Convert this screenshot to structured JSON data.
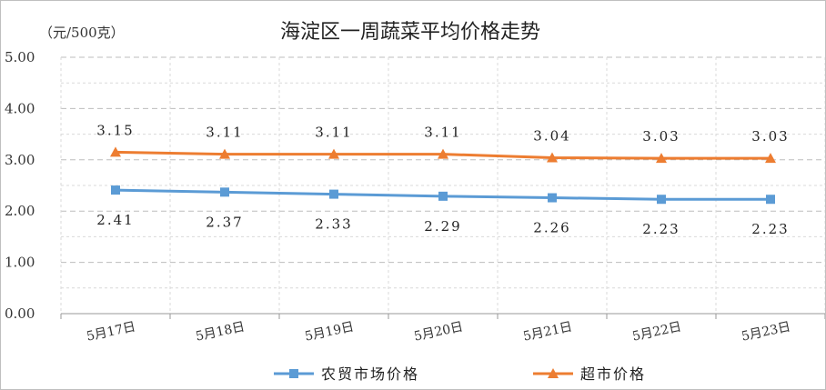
{
  "chart_data": {
    "type": "line",
    "title": "海淀区一周蔬菜平均价格走势",
    "unit_label": "（元/500克）",
    "categories": [
      "5月17日",
      "5月18日",
      "5月19日",
      "5月20日",
      "5月21日",
      "5月22日",
      "5月23日"
    ],
    "y_ticks": [
      "0.00",
      "1.00",
      "2.00",
      "3.00",
      "4.00",
      "5.00"
    ],
    "ylim": [
      0,
      5
    ],
    "grid": true,
    "legend_position": "bottom",
    "series": [
      {
        "name": "农贸市场价格",
        "color": "#5b9bd5",
        "marker": "square",
        "values": [
          2.41,
          2.37,
          2.33,
          2.29,
          2.26,
          2.23,
          2.23
        ],
        "labels": [
          "2.41",
          "2.37",
          "2.33",
          "2.29",
          "2.26",
          "2.23",
          "2.23"
        ],
        "label_position": "below"
      },
      {
        "name": "超市价格",
        "color": "#ed7d31",
        "marker": "triangle",
        "values": [
          3.15,
          3.11,
          3.11,
          3.11,
          3.04,
          3.03,
          3.03
        ],
        "labels": [
          "3.15",
          "3.11",
          "3.11",
          "3.11",
          "3.04",
          "3.03",
          "3.03"
        ],
        "label_position": "above"
      }
    ]
  }
}
